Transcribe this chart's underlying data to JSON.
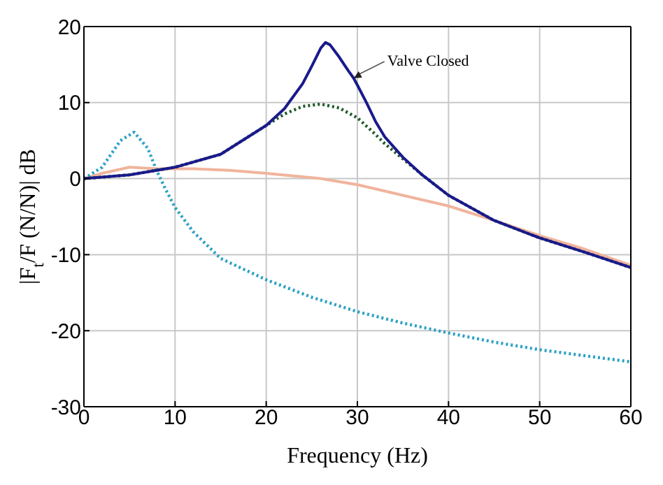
{
  "chart_data": {
    "type": "line",
    "xlabel": "Frequency (Hz)",
    "ylabel": "|F$_{t}$/F (N/N)| dB",
    "xlim": [
      0,
      60
    ],
    "ylim": [
      -30,
      20
    ],
    "xticks": [
      0,
      10,
      20,
      30,
      40,
      50,
      60
    ],
    "yticks": [
      -30,
      -20,
      -10,
      0,
      10,
      20
    ],
    "grid": true,
    "marker": "none",
    "annotations": [
      {
        "text": "Valve Closed",
        "x": 29.6,
        "y": 13.2
      }
    ],
    "series": [
      {
        "color": "#f0b49c",
        "line_style": "solid",
        "x": [
          0,
          2,
          5,
          8,
          12,
          16,
          20,
          26,
          30,
          35,
          40,
          45,
          50,
          55,
          60
        ],
        "values": [
          0,
          0.7,
          1.5,
          1.3,
          1.3,
          1.1,
          0.7,
          0,
          -0.8,
          -2.2,
          -3.6,
          -5.5,
          -7.5,
          -9.3,
          -11.4
        ]
      },
      {
        "color": "#2aa0c4",
        "line_style": "dotted",
        "x": [
          0,
          2,
          4,
          5.5,
          7,
          8,
          9,
          10,
          12,
          15,
          20,
          25,
          30,
          35,
          40,
          45,
          50,
          55,
          60
        ],
        "values": [
          0,
          1.5,
          5,
          6.1,
          4,
          1,
          -1.5,
          -3.8,
          -7,
          -10.5,
          -13.3,
          -15.6,
          -17.5,
          -19,
          -20.3,
          -21.5,
          -22.5,
          -23.3,
          -24.1
        ]
      },
      {
        "color": "#1e5a28",
        "line_style": "dotted",
        "x": [
          0,
          5,
          10,
          15,
          20,
          22,
          24,
          26,
          28,
          30,
          31,
          32,
          33,
          35,
          37,
          40,
          45,
          50,
          55,
          60
        ],
        "values": [
          0,
          0.5,
          1.5,
          3.2,
          7,
          8.5,
          9.5,
          9.8,
          9.3,
          8,
          6.9,
          5.8,
          4.6,
          2.6,
          0.6,
          -2.2,
          -5.5,
          -7.8,
          -9.7,
          -11.7
        ]
      },
      {
        "color": "#1a1a8c",
        "line_style": "solid",
        "x": [
          0,
          5,
          10,
          15,
          20,
          22,
          24,
          25,
          26,
          26.5,
          27,
          28,
          29,
          29.6,
          30,
          31,
          32,
          33,
          35,
          37,
          40,
          45,
          50,
          55,
          60
        ],
        "values": [
          0,
          0.5,
          1.5,
          3.2,
          7,
          9.2,
          12.5,
          14.8,
          17.2,
          17.9,
          17.6,
          16,
          14.2,
          13.2,
          12.3,
          10,
          7.5,
          5.5,
          2.8,
          0.6,
          -2.2,
          -5.5,
          -7.8,
          -9.7,
          -11.7
        ]
      }
    ]
  }
}
